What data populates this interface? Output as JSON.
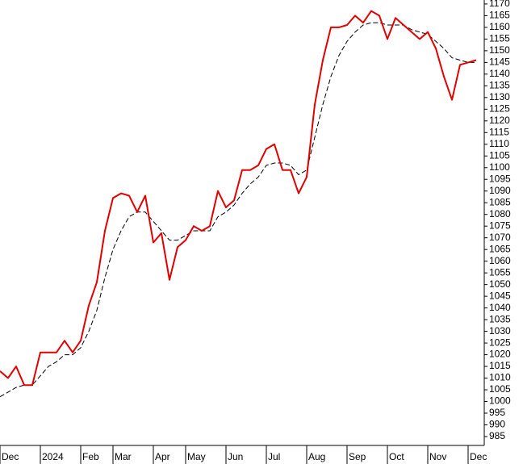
{
  "chart_data": {
    "type": "line",
    "categories": [
      "Dec",
      null,
      null,
      null,
      null,
      "2024",
      null,
      null,
      null,
      null,
      "Feb",
      null,
      null,
      null,
      "Mar",
      null,
      null,
      null,
      null,
      "Apr",
      null,
      null,
      null,
      "May",
      null,
      null,
      null,
      null,
      "Jun",
      null,
      null,
      null,
      null,
      "Jul",
      null,
      null,
      null,
      null,
      "Aug",
      null,
      null,
      null,
      null,
      "Sep",
      null,
      null,
      null,
      null,
      "Oct",
      null,
      null,
      null,
      null,
      "Nov",
      null,
      null,
      null,
      null,
      "Dec",
      null
    ],
    "series": [
      {
        "color": "#e00000",
        "style": "solid",
        "values": [
          1013,
          1010,
          1015,
          1007,
          1007,
          1021,
          1021,
          1021,
          1026,
          1021,
          1026,
          1041,
          1051,
          1073,
          1087,
          1089,
          1088,
          1081,
          1088,
          1068,
          1072,
          1052,
          1066,
          1069,
          1075,
          1073,
          1075,
          1090,
          1083,
          1086,
          1099,
          1099,
          1101,
          1108,
          1110,
          1099,
          1099,
          1089,
          1096,
          1127,
          1146,
          1160,
          1160,
          1161,
          1165,
          1162,
          1167,
          1165,
          1155,
          1164,
          1161,
          1158,
          1155,
          1158,
          1151,
          1139,
          1129,
          1144,
          1145,
          1146
        ]
      },
      {
        "color": "#000000",
        "style": "dashed",
        "values": [
          1002,
          1004,
          1006,
          1007,
          1007,
          1011,
          1015,
          1017,
          1020,
          1020,
          1023,
          1030,
          1039,
          1053,
          1065,
          1073,
          1079,
          1081,
          1081,
          1077,
          1073,
          1069,
          1069,
          1071,
          1073,
          1073,
          1073,
          1079,
          1081,
          1084,
          1089,
          1093,
          1096,
          1101,
          1102,
          1102,
          1101,
          1097,
          1099,
          1113,
          1127,
          1139,
          1148,
          1154,
          1158,
          1161,
          1162,
          1162,
          1161,
          1161,
          1161,
          1159,
          1158,
          1157,
          1154,
          1151,
          1147,
          1146,
          1145,
          1145
        ]
      }
    ],
    "ylim": [
      981.2,
      1171.7
    ],
    "yticks": [
      985,
      990,
      995,
      1000,
      1005,
      1010,
      1015,
      1020,
      1025,
      1030,
      1035,
      1040,
      1045,
      1050,
      1055,
      1060,
      1065,
      1070,
      1075,
      1080,
      1085,
      1090,
      1095,
      1100,
      1105,
      1110,
      1115,
      1120,
      1125,
      1130,
      1135,
      1140,
      1145,
      1150,
      1155,
      1160,
      1165,
      1170
    ],
    "grid": false
  }
}
